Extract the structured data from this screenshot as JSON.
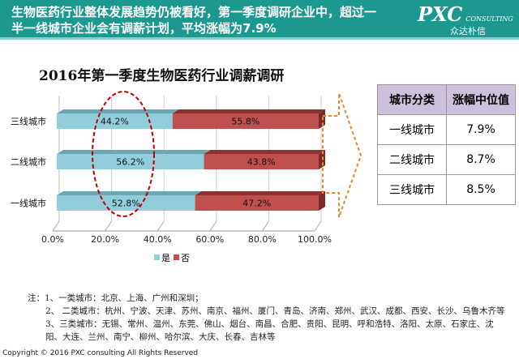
{
  "header": {
    "line1": "生物医药行业整体发展趋势仍被看好，第一季度调研企业中，超过一",
    "line2": "半一线城市企业会有调薪计划，平均涨幅为7.9%",
    "logo_brand": "PXC",
    "logo_sub": "CONSULTING",
    "logo_cn": "众达朴信"
  },
  "colors": {
    "header": "#1d9891",
    "yes": "#92cddc",
    "no": "#c0504d",
    "table_header": "#ccc0da",
    "highlight": "#c00000",
    "arrow": "#e5892e"
  },
  "chart_data": {
    "type": "bar",
    "stacked": true,
    "orientation": "horizontal",
    "title": "2016年第一季度生物医药行业调薪调研",
    "categories": [
      "三线城市",
      "二线城市",
      "一线城市"
    ],
    "series": [
      {
        "name": "是",
        "values": [
          44.2,
          56.2,
          52.8
        ]
      },
      {
        "name": "否",
        "values": [
          55.8,
          43.8,
          47.2
        ]
      }
    ],
    "labels": [
      [
        "44.2%",
        "55.8%"
      ],
      [
        "56.2%",
        "43.8%"
      ],
      [
        "52.8%",
        "47.2%"
      ]
    ],
    "xticks": [
      "0.0%",
      "20.0%",
      "40.0%",
      "60.0%",
      "80.0%",
      "100.0%"
    ],
    "xlim": [
      0,
      100
    ],
    "legend": "bottom",
    "grid": true
  },
  "table": {
    "headers": [
      "城市分类",
      "涨幅中位值"
    ],
    "rows": [
      [
        "一线城市",
        "7.9%"
      ],
      [
        "二线城市",
        "8.7%"
      ],
      [
        "三线城市",
        "8.5%"
      ]
    ]
  },
  "notes": [
    "注：1、一类城市：北京、上海、广州和深圳；",
    "2、 二类城市：杭州、宁波、天津、苏州、南京、福州、厦门、青岛、济南、郑州、武汉、成都、西安、长沙、乌鲁木齐等",
    "3、三类城市：无锡、常州、温州、东莞、佛山、烟台、南昌、合肥、贵阳、昆明、呼和浩特、洛阳、太原、石家庄、沈阳、大连、兰州、南宁、柳州、哈尔滨、大庆、长春、吉林等"
  ],
  "copyright": "Copyright © 2016  PXC consulting All Rights Reserved"
}
